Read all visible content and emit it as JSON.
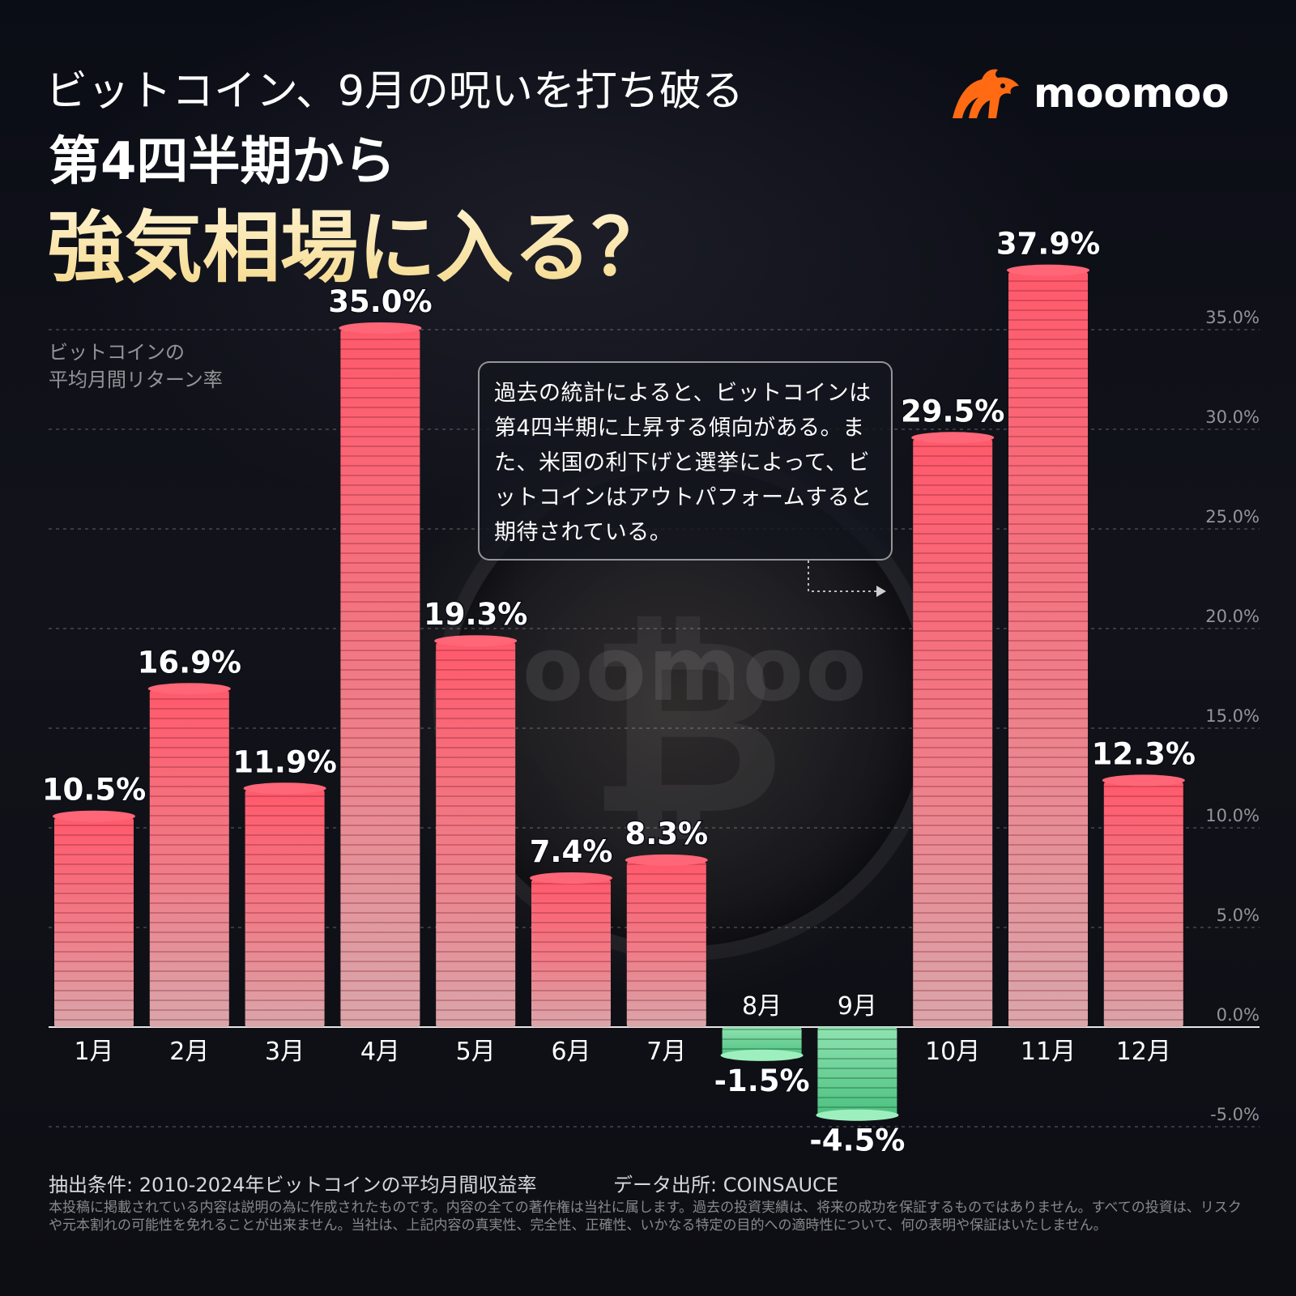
{
  "title": {
    "line1": "ビットコイン、9月の呪いを打ち破る",
    "line2": "第4四半期から",
    "line3": "強気相場に入る？"
  },
  "brand": {
    "name": "moomoo",
    "icon": "bull-icon",
    "accent": "#ff6a13"
  },
  "watermark": "moomoo",
  "callout": "過去の統計によると、ビットコインは第4四半期に上昇する傾向がある。また、米国の利下げと選挙によって、ビットコインはアウトパフォームすると期待されている。",
  "footer": {
    "condition": "抽出条件: 2010-2024年ビットコインの平均月間収益率",
    "source": "データ出所: COINSAUCE",
    "disclaimer": "本投稿に掲載されている内容は説明の為に作成されたものです。内容の全ての著作権は当社に属します。過去の投資実績は、将来の成功を保証するものではありません。すべての投資は、リスクや元本割れの可能性を免れることが出来ません。当社は、上記内容の真実性、完全性、正確性、いかなる特定の目的への適時性について、何の表明や保証はいたしません。"
  },
  "chart_data": {
    "type": "bar",
    "ylabel": "ビットコインの\n平均月間リターン率",
    "categories": [
      "1月",
      "2月",
      "3月",
      "4月",
      "5月",
      "6月",
      "7月",
      "8月",
      "9月",
      "10月",
      "11月",
      "12月"
    ],
    "values": [
      10.5,
      16.9,
      11.9,
      35.0,
      19.3,
      7.4,
      8.3,
      -1.5,
      -4.5,
      29.5,
      37.9,
      12.3
    ],
    "data_labels": [
      "10.5%",
      "16.9%",
      "11.9%",
      "35.0%",
      "19.3%",
      "7.4%",
      "8.3%",
      "-1.5%",
      "-4.5%",
      "29.5%",
      "37.9%",
      "12.3%"
    ],
    "ylim": [
      -5,
      35
    ],
    "yticks": [
      -5,
      0,
      5,
      10,
      15,
      20,
      25,
      30,
      35
    ],
    "ytick_labels": [
      "-5.0%",
      "0.0%",
      "5.0%",
      "10.0%",
      "15.0%",
      "20.0%",
      "25.0%",
      "30.0%",
      "35.0%"
    ],
    "grid": true,
    "colors": {
      "positive": "#f26b7a",
      "negative": "#5fd08e"
    }
  }
}
